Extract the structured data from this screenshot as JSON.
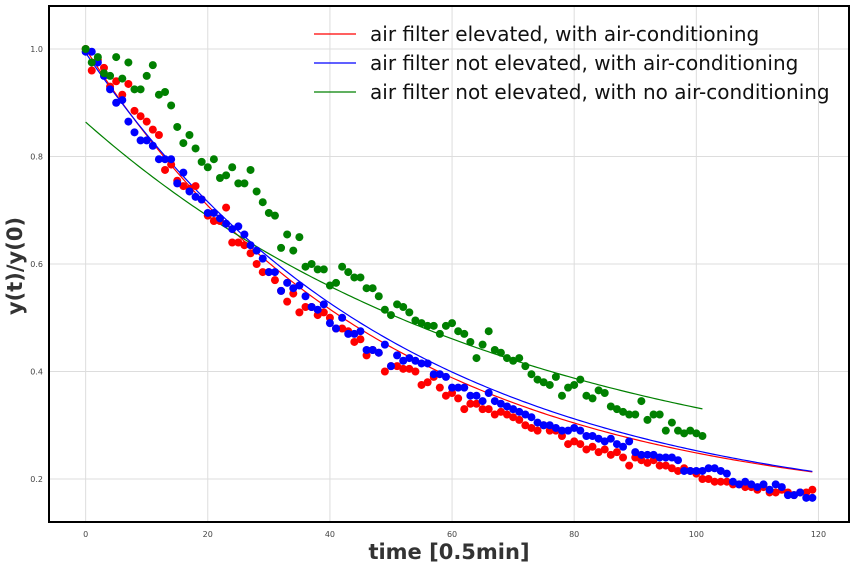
{
  "chart_data": {
    "type": "scatter",
    "xlabel": "time [0.5min]",
    "ylabel": "y(t)/y(0)",
    "xlim": [
      -6,
      125
    ],
    "ylim": [
      0.12,
      1.08
    ],
    "xticks": [
      0,
      20,
      40,
      60,
      80,
      100,
      120
    ],
    "yticks": [
      0.2,
      0.4,
      0.6,
      0.8,
      1.0
    ],
    "xtick_labels": [
      "0",
      "20",
      "40",
      "60",
      "80",
      "100",
      "120"
    ],
    "ytick_labels": [
      "0.2",
      "0.4",
      "0.6",
      "0.8",
      "1.0"
    ],
    "grid": true,
    "legend_position": "top-right",
    "series": [
      {
        "name": "air filter elevated, with air-conditioning",
        "color": "#ff0000",
        "fit": {
          "a": 1.0,
          "k": 0.0207,
          "c": 0.14,
          "x_end": 119
        },
        "x": [
          0,
          1,
          2,
          3,
          4,
          5,
          6,
          7,
          8,
          9,
          10,
          11,
          12,
          13,
          14,
          15,
          16,
          17,
          18,
          19,
          20,
          21,
          22,
          23,
          24,
          25,
          26,
          27,
          28,
          29,
          30,
          31,
          32,
          33,
          34,
          35,
          36,
          37,
          38,
          39,
          40,
          41,
          42,
          43,
          44,
          45,
          46,
          47,
          48,
          49,
          50,
          51,
          52,
          53,
          54,
          55,
          56,
          57,
          58,
          59,
          60,
          61,
          62,
          63,
          64,
          65,
          66,
          67,
          68,
          69,
          70,
          71,
          72,
          73,
          74,
          75,
          76,
          77,
          78,
          79,
          80,
          81,
          82,
          83,
          84,
          85,
          86,
          87,
          88,
          89,
          90,
          91,
          92,
          93,
          94,
          95,
          96,
          97,
          98,
          99,
          100,
          101,
          102,
          103,
          104,
          105,
          106,
          107,
          108,
          109,
          110,
          111,
          112,
          113,
          114,
          115,
          116,
          117,
          118,
          119
        ],
        "y": [
          1.0,
          0.96,
          0.98,
          0.965,
          0.93,
          0.94,
          0.915,
          0.935,
          0.885,
          0.875,
          0.865,
          0.85,
          0.84,
          0.775,
          0.785,
          0.755,
          0.745,
          0.74,
          0.745,
          0.72,
          0.69,
          0.68,
          0.68,
          0.705,
          0.64,
          0.64,
          0.635,
          0.62,
          0.6,
          0.585,
          0.585,
          0.57,
          0.55,
          0.53,
          0.545,
          0.51,
          0.52,
          0.52,
          0.505,
          0.51,
          0.5,
          0.48,
          0.48,
          0.475,
          0.455,
          0.46,
          0.43,
          0.44,
          0.435,
          0.4,
          0.41,
          0.41,
          0.405,
          0.405,
          0.4,
          0.375,
          0.38,
          0.39,
          0.37,
          0.355,
          0.36,
          0.35,
          0.33,
          0.34,
          0.34,
          0.33,
          0.33,
          0.32,
          0.325,
          0.32,
          0.315,
          0.31,
          0.3,
          0.295,
          0.29,
          0.3,
          0.29,
          0.29,
          0.28,
          0.265,
          0.27,
          0.265,
          0.255,
          0.26,
          0.25,
          0.255,
          0.245,
          0.25,
          0.24,
          0.225,
          0.24,
          0.235,
          0.23,
          0.235,
          0.225,
          0.225,
          0.22,
          0.215,
          0.22,
          0.215,
          0.21,
          0.2,
          0.2,
          0.195,
          0.195,
          0.195,
          0.19,
          0.19,
          0.185,
          0.185,
          0.18,
          0.185,
          0.175,
          0.175,
          0.18,
          0.175,
          0.17,
          0.175,
          0.175,
          0.18
        ]
      },
      {
        "name": "air filter not elevated, with air-conditioning",
        "color": "#0000ff",
        "fit": {
          "a": 0.993,
          "k": 0.0193,
          "c": 0.127,
          "x_end": 119
        },
        "x": [
          0,
          1,
          2,
          3,
          4,
          5,
          6,
          7,
          8,
          9,
          10,
          11,
          12,
          13,
          14,
          15,
          16,
          17,
          18,
          19,
          20,
          21,
          22,
          23,
          24,
          25,
          26,
          27,
          28,
          29,
          30,
          31,
          32,
          33,
          34,
          35,
          36,
          37,
          38,
          39,
          40,
          41,
          42,
          43,
          44,
          45,
          46,
          47,
          48,
          49,
          50,
          51,
          52,
          53,
          54,
          55,
          56,
          57,
          58,
          59,
          60,
          61,
          62,
          63,
          64,
          65,
          66,
          67,
          68,
          69,
          70,
          71,
          72,
          73,
          74,
          75,
          76,
          77,
          78,
          79,
          80,
          81,
          82,
          83,
          84,
          85,
          86,
          87,
          88,
          89,
          90,
          91,
          92,
          93,
          94,
          95,
          96,
          97,
          98,
          99,
          100,
          101,
          102,
          103,
          104,
          105,
          106,
          107,
          108,
          109,
          110,
          111,
          112,
          113,
          114,
          115,
          116,
          117,
          118,
          119
        ],
        "y": [
          0.995,
          0.995,
          0.975,
          0.95,
          0.925,
          0.9,
          0.905,
          0.865,
          0.845,
          0.83,
          0.83,
          0.82,
          0.795,
          0.795,
          0.795,
          0.75,
          0.77,
          0.735,
          0.725,
          0.72,
          0.695,
          0.695,
          0.685,
          0.675,
          0.665,
          0.67,
          0.655,
          0.635,
          0.625,
          0.61,
          0.585,
          0.585,
          0.55,
          0.565,
          0.555,
          0.56,
          0.54,
          0.52,
          0.515,
          0.525,
          0.49,
          0.48,
          0.5,
          0.47,
          0.47,
          0.475,
          0.44,
          0.44,
          0.435,
          0.45,
          0.41,
          0.43,
          0.42,
          0.425,
          0.42,
          0.415,
          0.415,
          0.395,
          0.395,
          0.39,
          0.37,
          0.37,
          0.37,
          0.355,
          0.355,
          0.345,
          0.36,
          0.345,
          0.34,
          0.335,
          0.33,
          0.325,
          0.32,
          0.315,
          0.305,
          0.3,
          0.3,
          0.295,
          0.29,
          0.29,
          0.295,
          0.29,
          0.28,
          0.28,
          0.275,
          0.27,
          0.275,
          0.265,
          0.26,
          0.27,
          0.25,
          0.245,
          0.245,
          0.245,
          0.24,
          0.24,
          0.24,
          0.235,
          0.215,
          0.215,
          0.215,
          0.215,
          0.22,
          0.22,
          0.215,
          0.21,
          0.195,
          0.19,
          0.195,
          0.19,
          0.185,
          0.19,
          0.18,
          0.19,
          0.185,
          0.17,
          0.17,
          0.175,
          0.165,
          0.165
        ]
      },
      {
        "name": "air filter not elevated, with no air-conditioning",
        "color": "#008000",
        "fit": {
          "a": 0.864,
          "k": 0.0145,
          "c": 0.17,
          "x_end": 101
        },
        "x": [
          0,
          1,
          2,
          3,
          4,
          5,
          6,
          7,
          8,
          9,
          10,
          11,
          12,
          13,
          14,
          15,
          16,
          17,
          18,
          19,
          20,
          21,
          22,
          23,
          24,
          25,
          26,
          27,
          28,
          29,
          30,
          31,
          32,
          33,
          34,
          35,
          36,
          37,
          38,
          39,
          40,
          41,
          42,
          43,
          44,
          45,
          46,
          47,
          48,
          49,
          50,
          51,
          52,
          53,
          54,
          55,
          56,
          57,
          58,
          59,
          60,
          61,
          62,
          63,
          64,
          65,
          66,
          67,
          68,
          69,
          70,
          71,
          72,
          73,
          74,
          75,
          76,
          77,
          78,
          79,
          80,
          81,
          82,
          83,
          84,
          85,
          86,
          87,
          88,
          89,
          90,
          91,
          92,
          93,
          94,
          95,
          96,
          97,
          98,
          99,
          100,
          101
        ],
        "y": [
          1.0,
          0.975,
          0.985,
          0.955,
          0.95,
          0.985,
          0.945,
          0.975,
          0.925,
          0.925,
          0.95,
          0.97,
          0.915,
          0.92,
          0.895,
          0.855,
          0.825,
          0.84,
          0.815,
          0.79,
          0.78,
          0.795,
          0.76,
          0.765,
          0.78,
          0.75,
          0.75,
          0.775,
          0.735,
          0.715,
          0.695,
          0.69,
          0.63,
          0.655,
          0.625,
          0.65,
          0.595,
          0.6,
          0.59,
          0.59,
          0.56,
          0.565,
          0.595,
          0.585,
          0.575,
          0.575,
          0.555,
          0.555,
          0.54,
          0.515,
          0.505,
          0.525,
          0.52,
          0.51,
          0.495,
          0.49,
          0.485,
          0.485,
          0.47,
          0.485,
          0.49,
          0.475,
          0.47,
          0.455,
          0.425,
          0.45,
          0.475,
          0.44,
          0.435,
          0.425,
          0.42,
          0.425,
          0.41,
          0.395,
          0.385,
          0.38,
          0.375,
          0.39,
          0.355,
          0.37,
          0.375,
          0.385,
          0.355,
          0.35,
          0.365,
          0.36,
          0.335,
          0.33,
          0.325,
          0.32,
          0.32,
          0.345,
          0.31,
          0.32,
          0.32,
          0.29,
          0.305,
          0.29,
          0.285,
          0.29,
          0.285,
          0.28
        ]
      }
    ]
  }
}
